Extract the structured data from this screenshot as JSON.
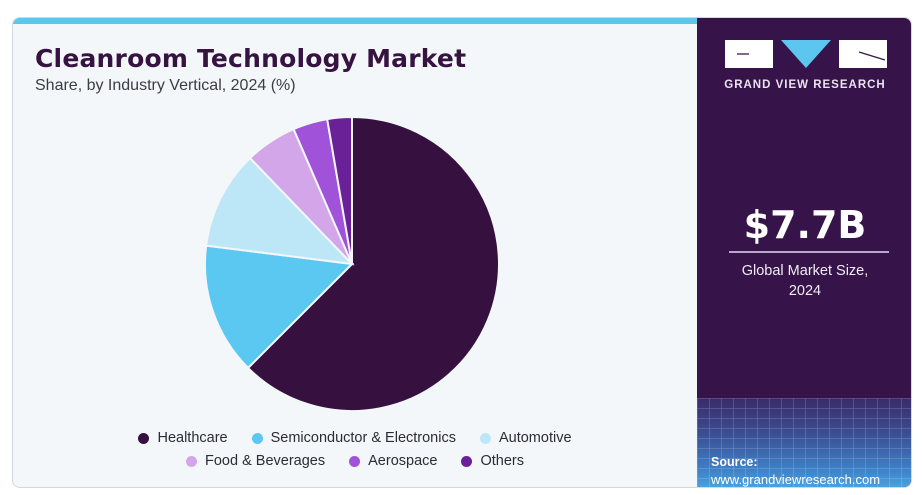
{
  "header": {
    "title": "Cleanroom Technology Market",
    "subtitle": "Share, by Industry Vertical, 2024 (%)"
  },
  "brand": {
    "name": "GRAND VIEW RESEARCH",
    "logo_icon": "gvr-logo-icon",
    "accent": "#5cc6ee",
    "dark": "#361348"
  },
  "stat": {
    "value": "$7.7B",
    "caption_line1": "Global Market Size,",
    "caption_line2": "2024"
  },
  "source": {
    "label": "Source:",
    "url": "www.grandviewresearch.com"
  },
  "chart_data": {
    "type": "pie",
    "title": "Cleanroom Technology Market",
    "subtitle": "Share, by Industry Vertical, 2024 (%)",
    "start_angle": "12 o'clock, clockwise",
    "legend_position": "bottom",
    "slices": [
      {
        "label": "Healthcare",
        "value": 62.5,
        "color": "#361140"
      },
      {
        "label": "Semiconductor & Electronics",
        "value": 14.5,
        "color": "#5ac8f1"
      },
      {
        "label": "Automotive",
        "value": 10.8,
        "color": "#bde7f7"
      },
      {
        "label": "Food & Beverages",
        "value": 5.7,
        "color": "#d3a6ea"
      },
      {
        "label": "Aerospace",
        "value": 3.8,
        "color": "#a052d8"
      },
      {
        "label": "Others",
        "value": 2.7,
        "color": "#6a2096"
      }
    ]
  }
}
